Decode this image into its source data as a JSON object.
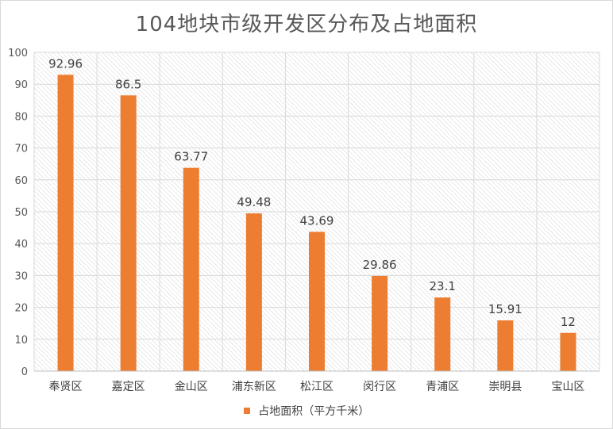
{
  "chart_data": {
    "type": "bar",
    "title": "104地块市级开发区分布及占地面积",
    "categories": [
      "奉贤区",
      "嘉定区",
      "金山区",
      "浦东新区",
      "松江区",
      "闵行区",
      "青浦区",
      "崇明县",
      "宝山区"
    ],
    "series": [
      {
        "name": "占地面积（平方千米）",
        "values": [
          92.96,
          86.5,
          63.77,
          49.48,
          43.69,
          29.86,
          23.1,
          15.91,
          12
        ],
        "labels": [
          "92.96",
          "86.5",
          "63.77",
          "49.48",
          "43.69",
          "29.86",
          "23.1",
          "15.91",
          "12"
        ],
        "color": "#ed7d31"
      }
    ],
    "ylim": [
      0,
      100
    ],
    "yticks": [
      0,
      10,
      20,
      30,
      40,
      50,
      60,
      70,
      80,
      90,
      100
    ],
    "grid": true,
    "plot_background": "hatched",
    "legend_position": "bottom"
  }
}
